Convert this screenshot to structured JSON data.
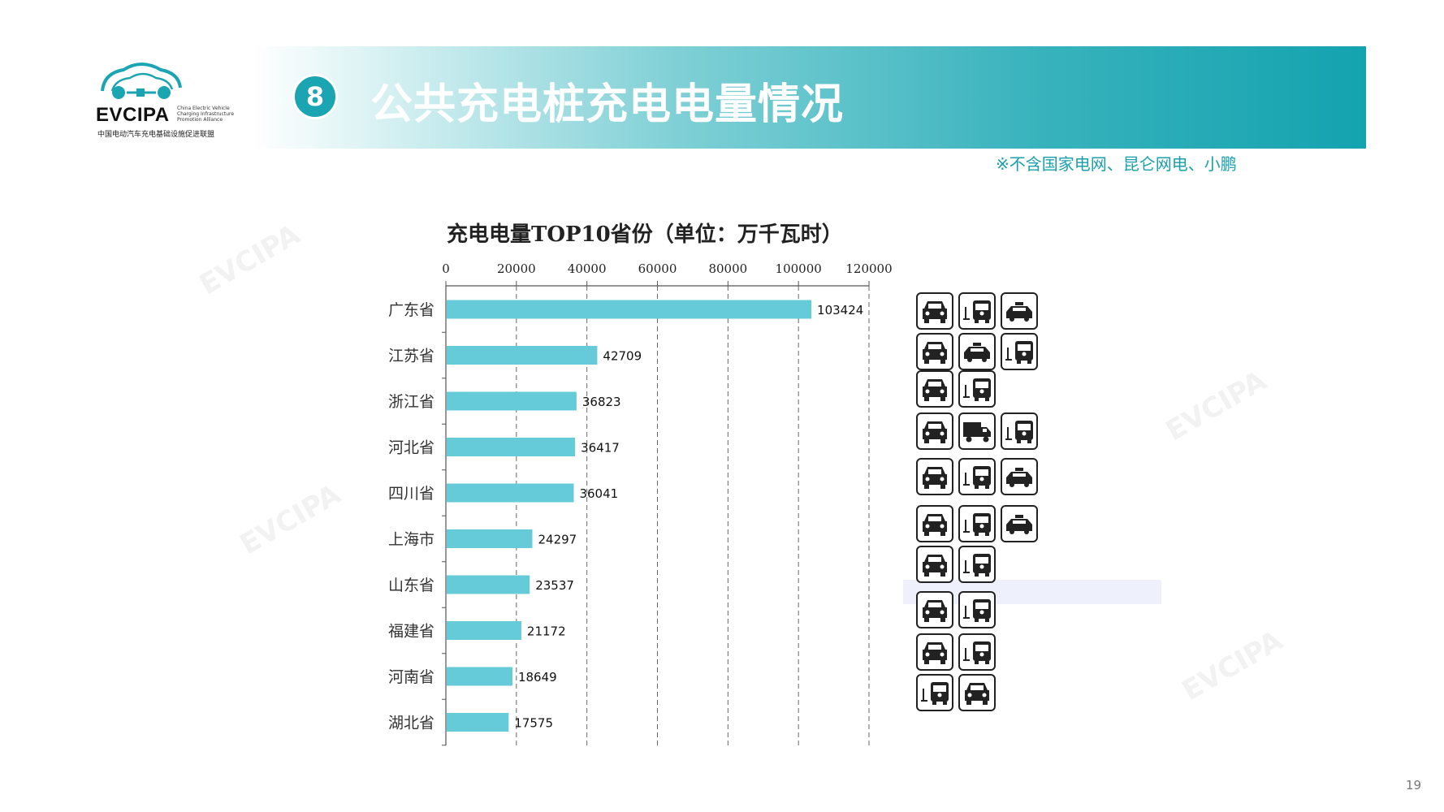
{
  "logo": {
    "name": "EVCIPA",
    "subtitle_en": "China Electric Vehicle Charging Infrastructure Promotion Alliance",
    "subtitle_cn": "中国电动汽车充电基础设施促进联盟"
  },
  "header": {
    "badge": "8",
    "title": "公共充电桩充电电量情况"
  },
  "note": "※不含国家电网、昆仑网电、小鹏",
  "page_number": "19",
  "colors": {
    "bar": "#66cbd8",
    "accent": "#1ba4b1"
  },
  "chart_data": {
    "type": "bar",
    "orientation": "horizontal",
    "title": "充电电量TOP10省份（单位：万千瓦时）",
    "categories": [
      "广东省",
      "江苏省",
      "浙江省",
      "河北省",
      "四川省",
      "上海市",
      "山东省",
      "福建省",
      "河南省",
      "湖北省"
    ],
    "values": [
      103424,
      42709,
      36823,
      36417,
      36041,
      24297,
      23537,
      21172,
      18649,
      17575
    ],
    "xlim": [
      0,
      120000
    ],
    "xticks": [
      "0",
      "20000",
      "40000",
      "60000",
      "80000",
      "100000",
      "120000"
    ],
    "x_axis_position": "top",
    "grid": "vertical dashed",
    "vehicle_icons": [
      [
        "private-car",
        "bus",
        "taxi"
      ],
      [
        "private-car",
        "taxi",
        "bus"
      ],
      [
        "private-car",
        "bus"
      ],
      [
        "private-car",
        "logistics-truck",
        "bus"
      ],
      [
        "private-car",
        "bus",
        "taxi"
      ],
      [
        "private-car",
        "bus",
        "taxi"
      ],
      [
        "private-car",
        "bus"
      ],
      [
        "private-car",
        "bus"
      ],
      [
        "private-car",
        "bus"
      ],
      [
        "bus",
        "private-car"
      ]
    ]
  }
}
